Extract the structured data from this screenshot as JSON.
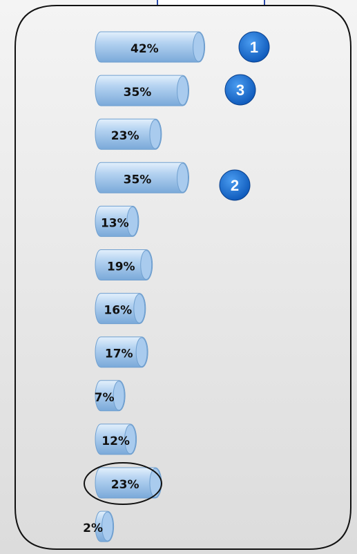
{
  "chart_data": {
    "type": "bar",
    "values": [
      42,
      35,
      23,
      35,
      13,
      19,
      16,
      17,
      7,
      12,
      23,
      2
    ],
    "value_labels": [
      "42%",
      "35%",
      "23%",
      "35%",
      "13%",
      "19%",
      "16%",
      "17%",
      "7%",
      "12%",
      "23%",
      "2%"
    ],
    "color": "#9cc3ea",
    "annotations": [
      "1",
      "3",
      "2"
    ]
  }
}
